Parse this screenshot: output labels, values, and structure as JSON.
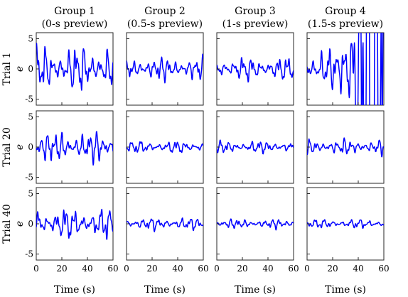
{
  "figure": {
    "column_titles": [
      [
        "Group 1",
        "(0-s preview)"
      ],
      [
        "Group 2",
        "(0.5-s preview)"
      ],
      [
        "Group 3",
        "(1-s preview)"
      ],
      [
        "Group 4",
        "(1.5-s preview)"
      ]
    ],
    "row_labels": [
      "Trial 1",
      "Trial 20",
      "Trial 40"
    ],
    "ylabel": "e",
    "xlabel": "Time (s)",
    "colors": {
      "trace": "#0000ff",
      "axes": "#262626"
    }
  },
  "chart_data": {
    "type": "line",
    "layout": "small-multiples 3 rows x 4 columns",
    "xlim": [
      0,
      60
    ],
    "ylim": [
      -6,
      6
    ],
    "xticks": [
      0,
      20,
      40,
      60
    ],
    "yticks": [
      -5,
      0,
      5
    ],
    "grid": false,
    "legend": "none",
    "panels": [
      {
        "row": "Trial 1",
        "column": "Group 1",
        "amplitude": 3.0,
        "note": "large oscillations, spikes to about +5 and -6"
      },
      {
        "row": "Trial 1",
        "column": "Group 2",
        "amplitude": 1.5
      },
      {
        "row": "Trial 1",
        "column": "Group 3",
        "amplitude": 1.5
      },
      {
        "row": "Trial 1",
        "column": "Group 4",
        "amplitude": 2.5,
        "note": "diverges after ~25 s, exceeding axis limits"
      },
      {
        "row": "Trial 20",
        "column": "Group 1",
        "amplitude": 2.0
      },
      {
        "row": "Trial 20",
        "column": "Group 2",
        "amplitude": 0.8
      },
      {
        "row": "Trial 20",
        "column": "Group 3",
        "amplitude": 0.8
      },
      {
        "row": "Trial 20",
        "column": "Group 4",
        "amplitude": 1.0
      },
      {
        "row": "Trial 40",
        "column": "Group 1",
        "amplitude": 2.0
      },
      {
        "row": "Trial 40",
        "column": "Group 2",
        "amplitude": 0.8
      },
      {
        "row": "Trial 40",
        "column": "Group 3",
        "amplitude": 0.6
      },
      {
        "row": "Trial 40",
        "column": "Group 4",
        "amplitude": 0.6
      }
    ]
  }
}
